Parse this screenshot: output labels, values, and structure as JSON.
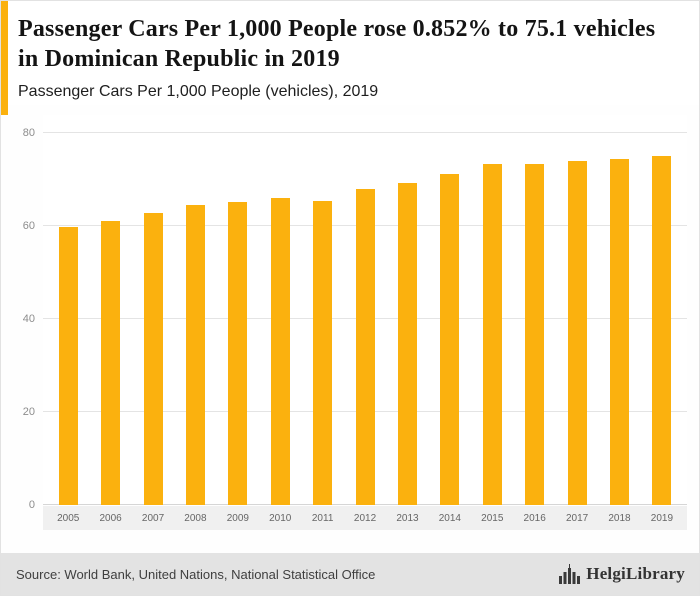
{
  "accent_color": "#FBB10E",
  "header": {
    "title": "Passenger Cars Per 1,000 People rose 0.852% to 75.1 vehicles in Dominican Republic in 2019",
    "subtitle": "Passenger Cars Per 1,000 People (vehicles), 2019"
  },
  "chart_data": {
    "type": "bar",
    "title": "Passenger Cars Per 1,000 People (vehicles), 2019",
    "categories": [
      "2005",
      "2006",
      "2007",
      "2008",
      "2009",
      "2010",
      "2011",
      "2012",
      "2013",
      "2014",
      "2015",
      "2016",
      "2017",
      "2018",
      "2019"
    ],
    "values": [
      59.8,
      61.2,
      62.8,
      64.6,
      65.2,
      66.2,
      65.5,
      68.0,
      69.3,
      71.2,
      73.4,
      73.4,
      74.1,
      74.5,
      75.1
    ],
    "xlabel": "",
    "ylabel": "",
    "ylim": [
      0,
      80
    ],
    "yticks": [
      0,
      20,
      40,
      60,
      80
    ],
    "bar_color": "#FBB10E",
    "grid": true,
    "legend": false
  },
  "footer": {
    "source": "Source: World Bank, United Nations, National Statistical Office",
    "logo_text": "HelgiLibrary",
    "logo_icon": "bar-chart-icon"
  }
}
